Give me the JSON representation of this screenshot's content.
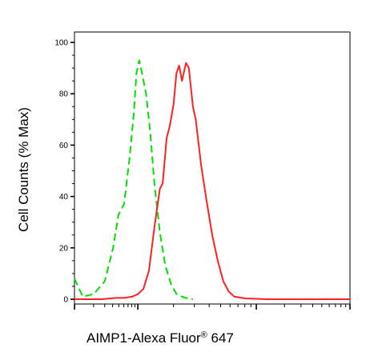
{
  "chart_data": {
    "type": "line",
    "title": "",
    "xlabel": "AIMP1-Alexa Fluor",
    "xlabel_superscript": "®",
    "xlabel_suffix": " 647",
    "ylabel": "Cell Counts (% Max)",
    "ylim": [
      0,
      100
    ],
    "xlim": [
      0,
      1
    ],
    "y_ticks": [
      "0",
      "20",
      "40",
      "60",
      "80",
      "100"
    ],
    "x_scale": "log-like (unlabeled)",
    "grid": false,
    "legend": "none",
    "series": [
      {
        "color": "#00e000",
        "style": "dashed",
        "x": [
          0.0,
          0.03,
          0.07,
          0.11,
          0.14,
          0.16,
          0.18,
          0.2,
          0.215,
          0.225,
          0.235,
          0.245,
          0.26,
          0.275,
          0.29,
          0.31,
          0.33,
          0.35,
          0.37,
          0.39,
          0.41,
          0.43
        ],
        "values": [
          8,
          1,
          2,
          7,
          20,
          33,
          37,
          55,
          72,
          88,
          93,
          88,
          80,
          65,
          45,
          26,
          13,
          6,
          2,
          1,
          0.3,
          0
        ]
      },
      {
        "color": "#ff2020",
        "style": "solid",
        "x": [
          0.0,
          0.1,
          0.15,
          0.18,
          0.21,
          0.23,
          0.25,
          0.27,
          0.29,
          0.31,
          0.32,
          0.335,
          0.345,
          0.36,
          0.37,
          0.38,
          0.39,
          0.405,
          0.415,
          0.43,
          0.44,
          0.46,
          0.48,
          0.5,
          0.52,
          0.54,
          0.56,
          0.58,
          0.62,
          0.7,
          1.0
        ],
        "values": [
          0,
          0,
          0.5,
          0.5,
          1,
          2,
          4,
          11,
          28,
          43,
          45,
          63,
          67,
          76,
          88,
          91,
          85,
          92,
          90,
          75,
          70,
          52,
          38,
          25,
          15,
          7,
          3,
          1,
          0.3,
          0,
          0
        ]
      }
    ]
  }
}
